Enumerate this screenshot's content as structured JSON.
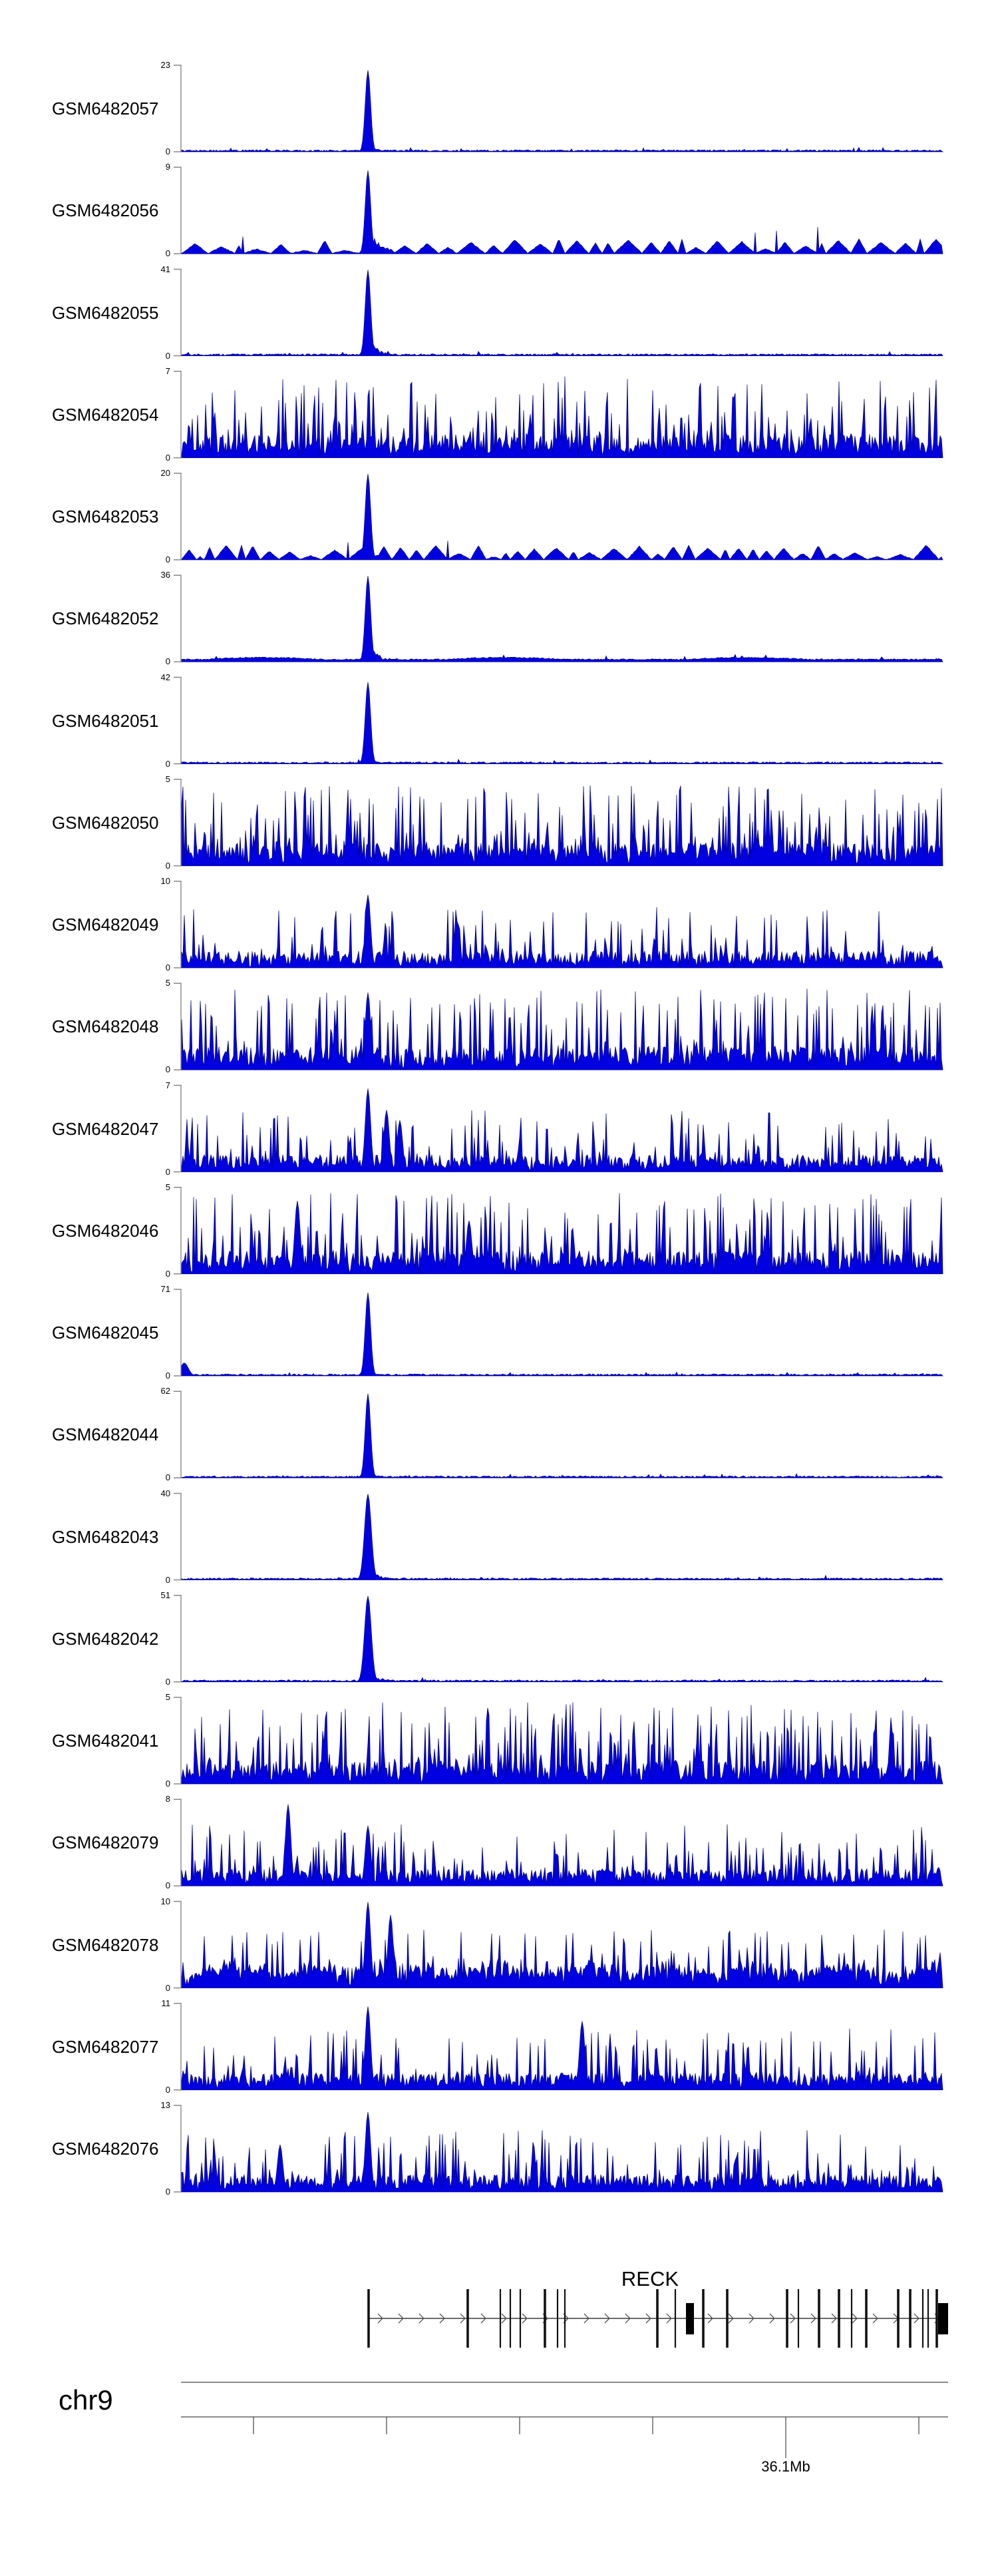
{
  "colors": {
    "signal_fill": "#0000e0",
    "signal_stroke": "#000080",
    "axis_gray": "#888888",
    "gene_black": "#111111",
    "ruler_gray": "#666666",
    "text": "#000000"
  },
  "chart_data": {
    "type": "area",
    "title": "",
    "description": "Genome browser view of 21 coverage/signal tracks (GEO samples) over the RECK locus on chr9, ~35.65-36.22 Mb. Several samples show a sharp peak at ~35.786 Mb (RECK promoter); others show dense genome-wide signal.",
    "region": {
      "chromosome": "chr9",
      "view_start_mb": 35.6455,
      "view_end_mb": 36.222,
      "tick_interval_mb": 0.1,
      "ruler_ticks_mb": [
        35.7,
        35.8,
        35.9,
        36.0,
        36.1,
        36.2
      ],
      "labeled_tick_mb": 36.1,
      "labeled_tick_text": "36.1Mb"
    },
    "y_axis": {
      "min_label": "0"
    },
    "main_peak_mb": 35.786,
    "tracks": [
      {
        "label": "GSM6482057",
        "ymax": 23,
        "ymin": 0,
        "pattern": "quiet",
        "tail_amp": 0.08,
        "peaks": [
          {
            "mb": 35.786,
            "h": 0.95
          }
        ]
      },
      {
        "label": "GSM6482056",
        "ymax": 9,
        "ymin": 0,
        "pattern": "bumpy",
        "tail_amp": 0.3,
        "peaks": [
          {
            "mb": 35.786,
            "h": 0.97
          }
        ]
      },
      {
        "label": "GSM6482055",
        "ymax": 41,
        "ymin": 0,
        "pattern": "quiet",
        "tail_amp": 0.18,
        "peaks": [
          {
            "mb": 35.786,
            "h": 1.0
          }
        ]
      },
      {
        "label": "GSM6482054",
        "ymax": 7,
        "ymin": 0,
        "pattern": "dense",
        "tail_amp": 0,
        "peaks": []
      },
      {
        "label": "GSM6482053",
        "ymax": 20,
        "ymin": 0,
        "pattern": "bumpy",
        "tail_amp": 0.12,
        "peaks": [
          {
            "mb": 35.786,
            "h": 1.0
          }
        ]
      },
      {
        "label": "GSM6482052",
        "ymax": 36,
        "ymin": 0,
        "pattern": "low",
        "tail_amp": 0.22,
        "peaks": [
          {
            "mb": 35.786,
            "h": 1.0
          }
        ]
      },
      {
        "label": "GSM6482051",
        "ymax": 42,
        "ymin": 0,
        "pattern": "quiet",
        "tail_amp": 0.06,
        "peaks": [
          {
            "mb": 35.786,
            "h": 0.95
          }
        ]
      },
      {
        "label": "GSM6482050",
        "ymax": 5,
        "ymin": 0,
        "pattern": "dense",
        "tail_amp": 0,
        "peaks": []
      },
      {
        "label": "GSM6482049",
        "ymax": 10,
        "ymin": 0,
        "pattern": "dense-low",
        "tail_amp": 0,
        "peaks": [
          {
            "mb": 35.786,
            "h": 0.85
          }
        ]
      },
      {
        "label": "GSM6482048",
        "ymax": 5,
        "ymin": 0,
        "pattern": "dense",
        "tail_amp": 0,
        "peaks": [
          {
            "mb": 35.786,
            "h": 0.9
          }
        ]
      },
      {
        "label": "GSM6482047",
        "ymax": 7,
        "ymin": 0,
        "pattern": "dense-low",
        "tail_amp": 0,
        "peaks": [
          {
            "mb": 35.786,
            "h": 0.97
          },
          {
            "mb": 35.8,
            "h": 0.72
          },
          {
            "mb": 35.81,
            "h": 0.6
          }
        ]
      },
      {
        "label": "GSM6482046",
        "ymax": 5,
        "ymin": 0,
        "pattern": "dense",
        "tail_amp": 0,
        "peaks": [
          {
            "mb": 35.733,
            "h": 0.85
          },
          {
            "mb": 35.862,
            "h": 0.62
          }
        ]
      },
      {
        "label": "GSM6482045",
        "ymax": 71,
        "ymin": 0,
        "pattern": "quiet",
        "tail_amp": 0.05,
        "peaks": [
          {
            "mb": 35.648,
            "h": 0.15,
            "w": 3
          },
          {
            "mb": 35.786,
            "h": 0.97
          }
        ]
      },
      {
        "label": "GSM6482044",
        "ymax": 62,
        "ymin": 0,
        "pattern": "quiet",
        "tail_amp": 0.06,
        "peaks": [
          {
            "mb": 35.786,
            "h": 0.98
          }
        ]
      },
      {
        "label": "GSM6482043",
        "ymax": 40,
        "ymin": 0,
        "pattern": "quiet",
        "tail_amp": 0.12,
        "peaks": [
          {
            "mb": 35.786,
            "h": 1.0,
            "w": 2.5
          }
        ]
      },
      {
        "label": "GSM6482042",
        "ymax": 51,
        "ymin": 0,
        "pattern": "quiet",
        "tail_amp": 0.12,
        "peaks": [
          {
            "mb": 35.786,
            "h": 1.0,
            "w": 2.5
          }
        ]
      },
      {
        "label": "GSM6482041",
        "ymax": 5,
        "ymin": 0,
        "pattern": "dense",
        "tail_amp": 0,
        "peaks": []
      },
      {
        "label": "GSM6482079",
        "ymax": 8,
        "ymin": 0,
        "pattern": "dense-low",
        "tail_amp": 0,
        "peaks": [
          {
            "mb": 35.726,
            "h": 0.95
          },
          {
            "mb": 35.786,
            "h": 0.7
          }
        ]
      },
      {
        "label": "GSM6482078",
        "ymax": 10,
        "ymin": 0,
        "pattern": "bumpy-dense",
        "tail_amp": 0,
        "peaks": [
          {
            "mb": 35.786,
            "h": 1.0
          },
          {
            "mb": 35.803,
            "h": 0.85
          }
        ]
      },
      {
        "label": "GSM6482077",
        "ymax": 11,
        "ymin": 0,
        "pattern": "dense-low",
        "tail_amp": 0,
        "peaks": [
          {
            "mb": 35.786,
            "h": 0.97
          },
          {
            "mb": 35.947,
            "h": 0.8
          }
        ]
      },
      {
        "label": "GSM6482076",
        "ymax": 13,
        "ymin": 0,
        "pattern": "dense-low",
        "tail_amp": 0,
        "peaks": [
          {
            "mb": 35.72,
            "h": 0.55
          },
          {
            "mb": 35.786,
            "h": 0.93
          }
        ]
      }
    ],
    "gene": {
      "name": "RECK",
      "strand": "+",
      "start_mb": 35.7865,
      "end_mb": 36.222,
      "exon_ticks": [
        {
          "mb": 35.7865,
          "bold": true
        },
        {
          "mb": 35.861,
          "bold": true
        },
        {
          "mb": 35.8855,
          "bold": false
        },
        {
          "mb": 35.893,
          "bold": false
        },
        {
          "mb": 35.9005,
          "bold": false
        },
        {
          "mb": 35.919,
          "bold": true
        },
        {
          "mb": 35.9285,
          "bold": false
        },
        {
          "mb": 35.934,
          "bold": false
        },
        {
          "mb": 36.0035,
          "bold": true
        },
        {
          "mb": 36.017,
          "bold": false
        },
        {
          "mb": 36.038,
          "bold": true
        },
        {
          "mb": 36.056,
          "bold": true
        },
        {
          "mb": 36.101,
          "bold": true
        },
        {
          "mb": 36.1095,
          "bold": false
        },
        {
          "mb": 36.125,
          "bold": true
        },
        {
          "mb": 36.14,
          "bold": true
        },
        {
          "mb": 36.1495,
          "bold": false
        },
        {
          "mb": 36.1605,
          "bold": true
        },
        {
          "mb": 36.1845,
          "bold": true
        },
        {
          "mb": 36.1935,
          "bold": true
        },
        {
          "mb": 36.203,
          "bold": false
        },
        {
          "mb": 36.207,
          "bold": false
        },
        {
          "mb": 36.2135,
          "bold": true
        }
      ],
      "cds_boxes": [
        {
          "start_mb": 36.025,
          "end_mb": 36.031
        },
        {
          "start_mb": 36.2145,
          "end_mb": 36.222
        }
      ]
    }
  }
}
